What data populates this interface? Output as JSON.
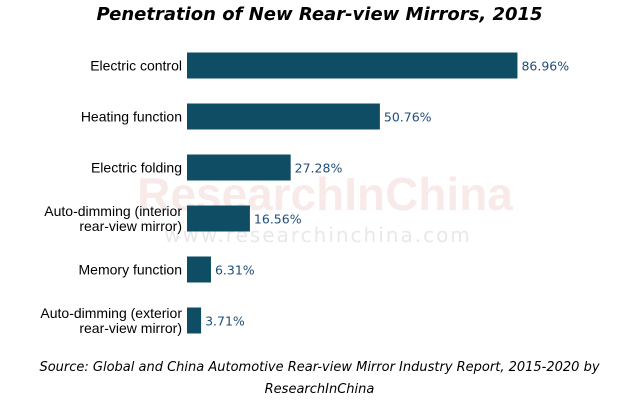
{
  "chart_data": {
    "type": "bar",
    "orientation": "horizontal",
    "title": "Penetration of New Rear-view Mirrors, 2015",
    "categories": [
      [
        "Electric control"
      ],
      [
        "Heating function"
      ],
      [
        "Electric folding"
      ],
      [
        "Auto-dimming (interior",
        "rear-view mirror)"
      ],
      [
        "Memory function"
      ],
      [
        "Auto-dimming (exterior",
        "rear-view mirror)"
      ]
    ],
    "values": [
      86.96,
      50.76,
      27.28,
      16.56,
      6.31,
      3.71
    ],
    "value_labels": [
      "86.96%",
      "50.76%",
      "27.28%",
      "16.56%",
      "6.31%",
      "3.71%"
    ],
    "unit": "%",
    "xlim": [
      0,
      100
    ],
    "grid": false,
    "bar_color": "#0e4d64",
    "label_color": "#1f4e79"
  },
  "watermark": {
    "brand": "ResearchInChina",
    "url": "www.researchinchina.com"
  },
  "source": {
    "line1": "Source: Global and China Automotive Rear-view  Mirror Industry Report, 2015-2020 by",
    "line2": "ResearchInChina"
  }
}
